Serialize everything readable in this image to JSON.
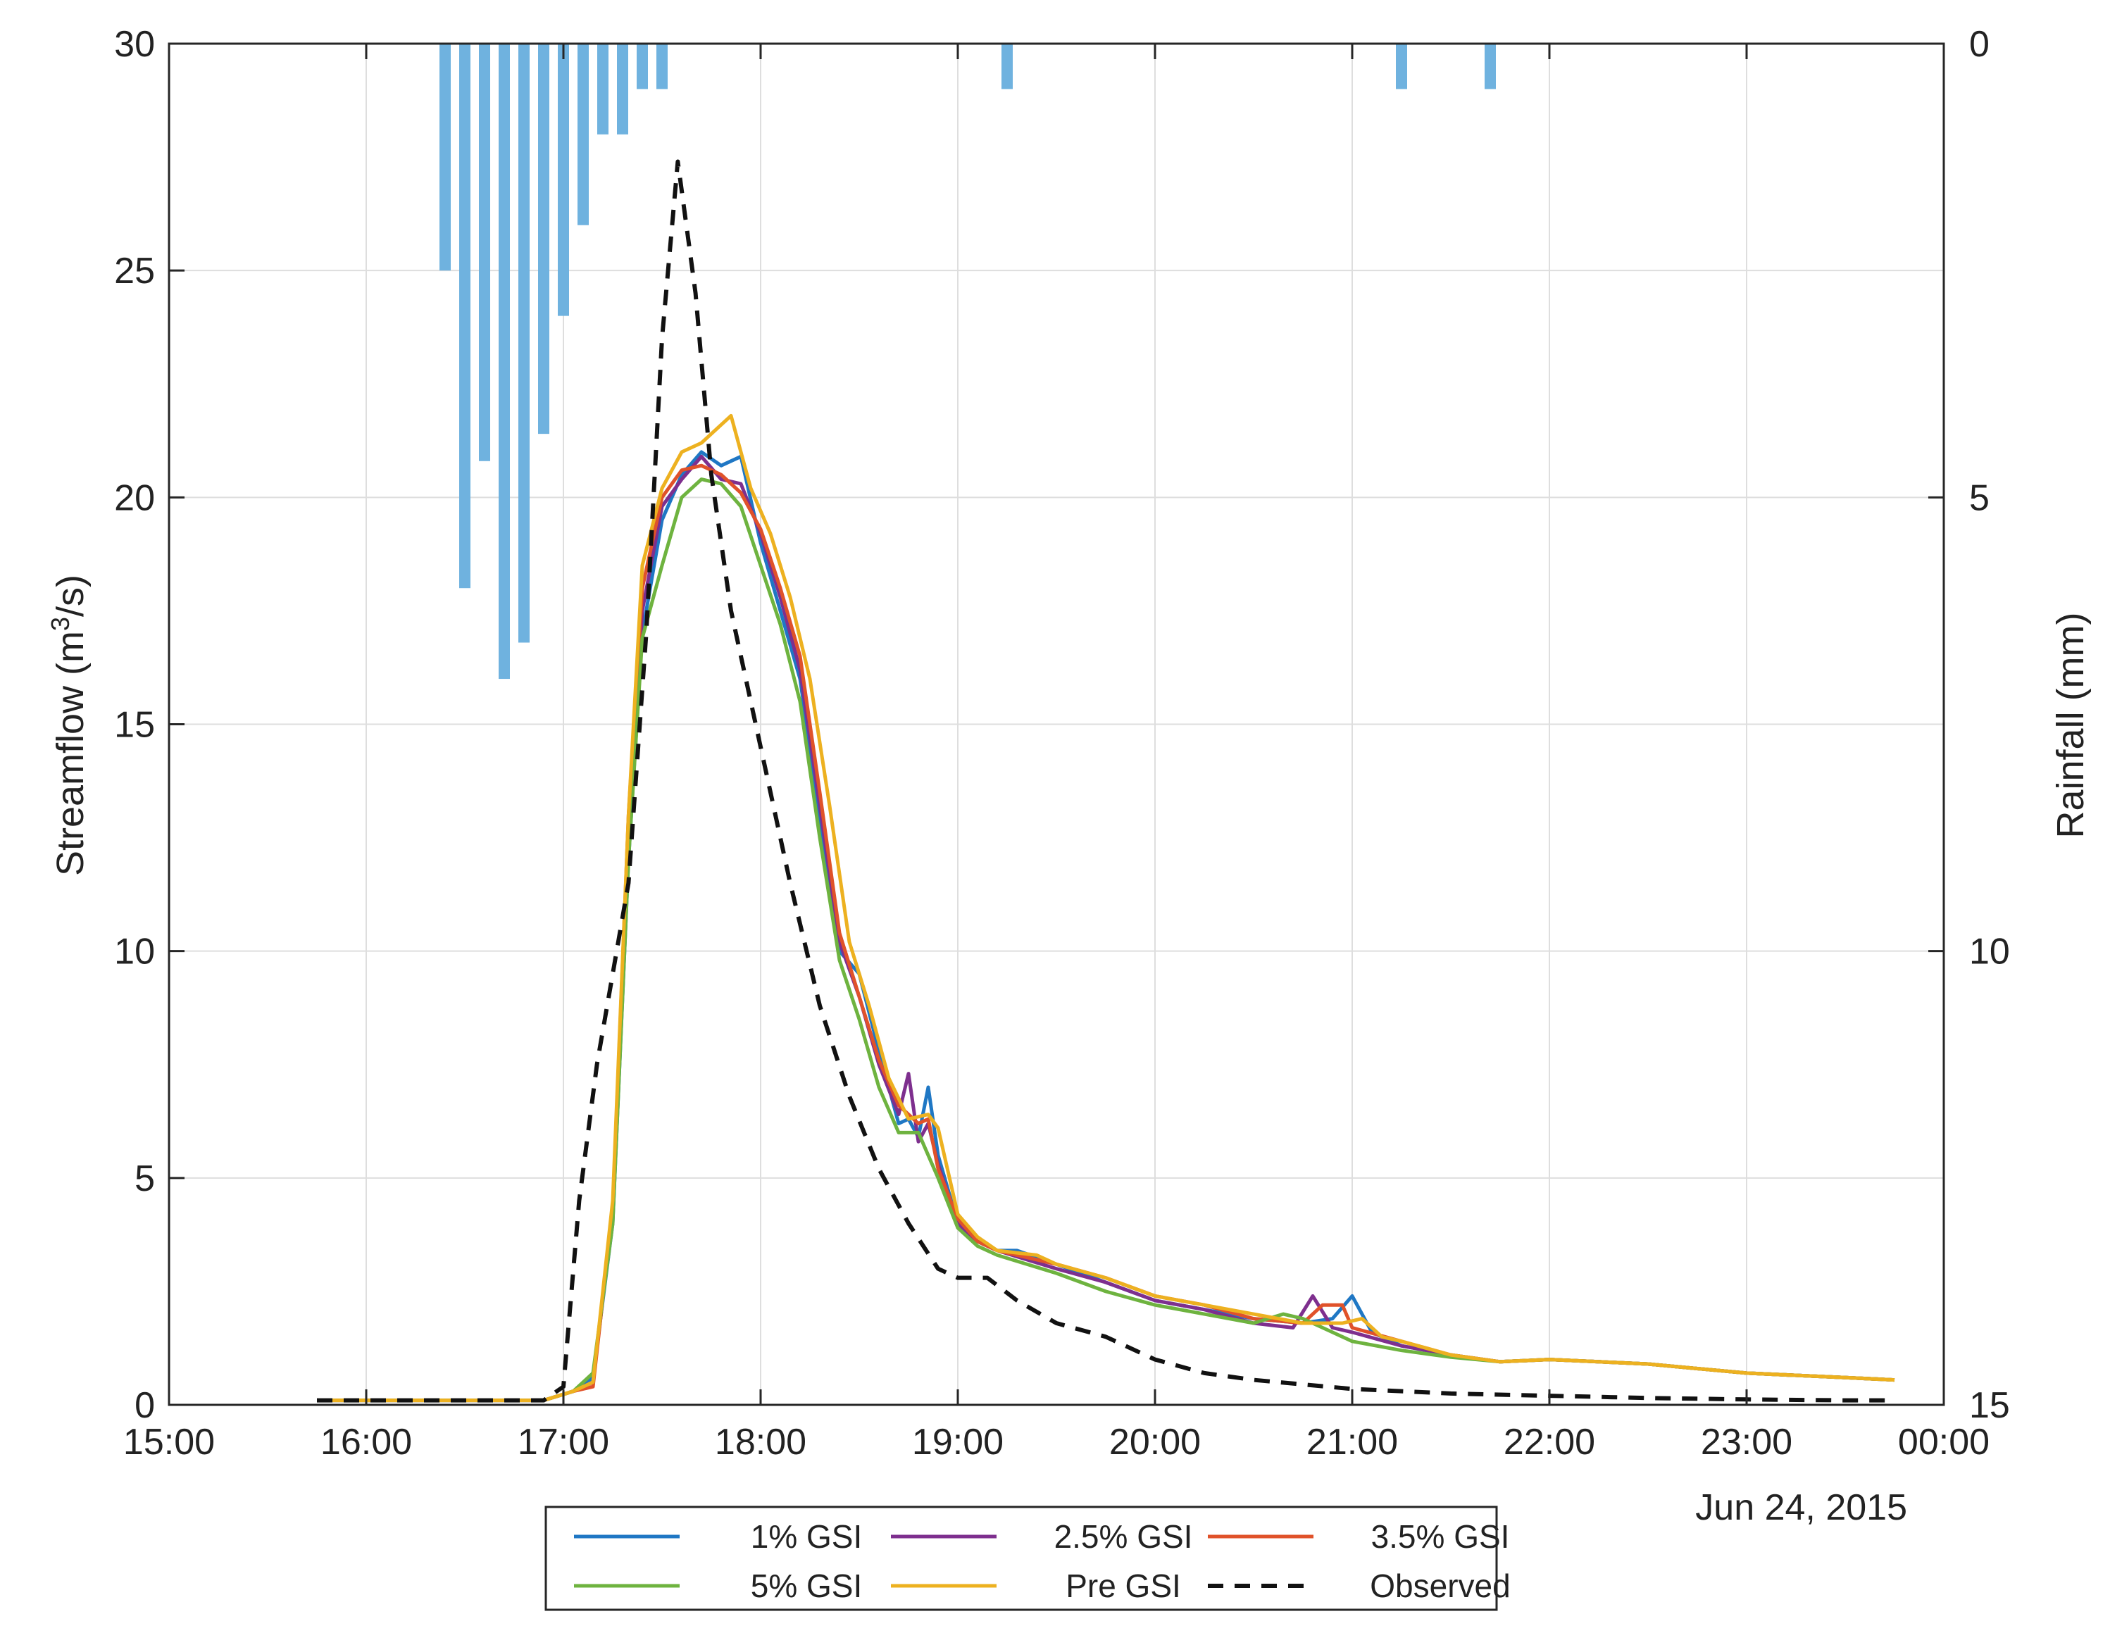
{
  "chart_data": {
    "type": "line",
    "xlabel": "",
    "ylabel": "Streamflow (m",
    "ylabel_sup": "3",
    "ylabel_tail": "/s)",
    "y2label": "Rainfall (mm)",
    "date_label": "Jun 24, 2015",
    "x_ticks": [
      "15:00",
      "16:00",
      "17:00",
      "18:00",
      "19:00",
      "20:00",
      "21:00",
      "22:00",
      "23:00",
      "00:00"
    ],
    "y_ticks": [
      "0",
      "5",
      "10",
      "15",
      "20",
      "25",
      "30"
    ],
    "y2_ticks": [
      "0",
      "5",
      "10",
      "15"
    ],
    "xlim_hours": [
      15,
      24
    ],
    "ylim": [
      0,
      30
    ],
    "y2lim": [
      0,
      15
    ],
    "y2_reversed": true,
    "grid": true,
    "legend_position": "bottom-center",
    "rainfall": {
      "color": "#6fb2df",
      "times": [
        16.4,
        16.5,
        16.6,
        16.7,
        16.8,
        16.9,
        17.0,
        17.1,
        17.2,
        17.3,
        17.4,
        17.5,
        19.25,
        21.25,
        21.7
      ],
      "values": [
        2.5,
        6.0,
        4.6,
        7.0,
        6.6,
        4.3,
        3.0,
        2.0,
        1.0,
        1.0,
        0.5,
        0.5,
        0.5,
        0.5,
        0.5
      ]
    },
    "series": [
      {
        "name": "1% GSI",
        "color": "#1f77c4",
        "dash": "solid",
        "points": [
          [
            15.75,
            0.1
          ],
          [
            16.0,
            0.1
          ],
          [
            16.5,
            0.1
          ],
          [
            16.9,
            0.1
          ],
          [
            17.05,
            0.3
          ],
          [
            17.15,
            0.6
          ],
          [
            17.25,
            4.0
          ],
          [
            17.33,
            12.0
          ],
          [
            17.4,
            17.0
          ],
          [
            17.5,
            19.5
          ],
          [
            17.6,
            20.5
          ],
          [
            17.7,
            21.0
          ],
          [
            17.8,
            20.7
          ],
          [
            17.9,
            20.9
          ],
          [
            18.0,
            19.0
          ],
          [
            18.1,
            17.5
          ],
          [
            18.2,
            16.0
          ],
          [
            18.3,
            13.0
          ],
          [
            18.4,
            10.0
          ],
          [
            18.5,
            9.5
          ],
          [
            18.6,
            7.8
          ],
          [
            18.7,
            6.2
          ],
          [
            18.75,
            6.3
          ],
          [
            18.8,
            5.9
          ],
          [
            18.85,
            7.0
          ],
          [
            18.9,
            5.5
          ],
          [
            19.0,
            4.0
          ],
          [
            19.1,
            3.6
          ],
          [
            19.2,
            3.4
          ],
          [
            19.3,
            3.4
          ],
          [
            19.5,
            3.1
          ],
          [
            19.75,
            2.7
          ],
          [
            20.0,
            2.3
          ],
          [
            20.25,
            2.1
          ],
          [
            20.5,
            1.9
          ],
          [
            20.75,
            1.8
          ],
          [
            20.9,
            1.9
          ],
          [
            21.0,
            2.4
          ],
          [
            21.1,
            1.6
          ],
          [
            21.25,
            1.3
          ],
          [
            21.5,
            1.1
          ],
          [
            21.75,
            0.95
          ],
          [
            22.0,
            1.0
          ],
          [
            22.25,
            0.95
          ],
          [
            22.5,
            0.9
          ],
          [
            22.75,
            0.8
          ],
          [
            23.0,
            0.7
          ],
          [
            23.5,
            0.6
          ],
          [
            23.75,
            0.55
          ]
        ]
      },
      {
        "name": "2.5% GSI",
        "color": "#7e2f8e",
        "dash": "solid",
        "points": [
          [
            15.75,
            0.1
          ],
          [
            16.0,
            0.1
          ],
          [
            16.5,
            0.1
          ],
          [
            16.9,
            0.1
          ],
          [
            17.05,
            0.3
          ],
          [
            17.15,
            0.5
          ],
          [
            17.25,
            4.2
          ],
          [
            17.33,
            12.5
          ],
          [
            17.4,
            17.5
          ],
          [
            17.5,
            19.8
          ],
          [
            17.6,
            20.4
          ],
          [
            17.7,
            20.9
          ],
          [
            17.8,
            20.4
          ],
          [
            17.9,
            20.3
          ],
          [
            18.0,
            19.2
          ],
          [
            18.1,
            17.8
          ],
          [
            18.2,
            16.2
          ],
          [
            18.3,
            13.2
          ],
          [
            18.4,
            10.2
          ],
          [
            18.5,
            9.0
          ],
          [
            18.6,
            7.5
          ],
          [
            18.7,
            6.4
          ],
          [
            18.75,
            7.3
          ],
          [
            18.8,
            5.8
          ],
          [
            18.85,
            6.2
          ],
          [
            18.9,
            5.3
          ],
          [
            19.0,
            4.0
          ],
          [
            19.1,
            3.6
          ],
          [
            19.2,
            3.4
          ],
          [
            19.5,
            3.0
          ],
          [
            19.75,
            2.7
          ],
          [
            20.0,
            2.3
          ],
          [
            20.25,
            2.1
          ],
          [
            20.5,
            1.8
          ],
          [
            20.7,
            1.7
          ],
          [
            20.8,
            2.4
          ],
          [
            20.9,
            1.7
          ],
          [
            21.0,
            1.6
          ],
          [
            21.25,
            1.3
          ],
          [
            21.5,
            1.1
          ],
          [
            21.75,
            0.95
          ],
          [
            22.0,
            1.0
          ],
          [
            22.25,
            0.95
          ],
          [
            22.5,
            0.9
          ],
          [
            22.75,
            0.8
          ],
          [
            23.0,
            0.7
          ],
          [
            23.5,
            0.6
          ],
          [
            23.75,
            0.55
          ]
        ]
      },
      {
        "name": "3.5% GSI",
        "color": "#e0522a",
        "dash": "solid",
        "points": [
          [
            15.75,
            0.1
          ],
          [
            16.0,
            0.1
          ],
          [
            16.5,
            0.1
          ],
          [
            16.9,
            0.1
          ],
          [
            17.05,
            0.3
          ],
          [
            17.15,
            0.4
          ],
          [
            17.25,
            4.3
          ],
          [
            17.33,
            13.0
          ],
          [
            17.4,
            18.0
          ],
          [
            17.5,
            20.0
          ],
          [
            17.6,
            20.6
          ],
          [
            17.7,
            20.7
          ],
          [
            17.8,
            20.5
          ],
          [
            17.9,
            20.1
          ],
          [
            18.0,
            19.3
          ],
          [
            18.1,
            18.0
          ],
          [
            18.2,
            16.5
          ],
          [
            18.3,
            13.5
          ],
          [
            18.4,
            10.4
          ],
          [
            18.5,
            9.0
          ],
          [
            18.6,
            7.6
          ],
          [
            18.7,
            6.6
          ],
          [
            18.8,
            6.2
          ],
          [
            18.85,
            6.3
          ],
          [
            18.9,
            5.2
          ],
          [
            19.0,
            4.1
          ],
          [
            19.1,
            3.6
          ],
          [
            19.2,
            3.4
          ],
          [
            19.5,
            3.1
          ],
          [
            19.75,
            2.8
          ],
          [
            20.0,
            2.4
          ],
          [
            20.25,
            2.2
          ],
          [
            20.5,
            1.9
          ],
          [
            20.75,
            1.8
          ],
          [
            20.85,
            2.2
          ],
          [
            20.95,
            2.2
          ],
          [
            21.0,
            1.7
          ],
          [
            21.25,
            1.4
          ],
          [
            21.5,
            1.1
          ],
          [
            21.75,
            0.95
          ],
          [
            22.0,
            1.0
          ],
          [
            22.25,
            0.95
          ],
          [
            22.5,
            0.9
          ],
          [
            22.75,
            0.8
          ],
          [
            23.0,
            0.7
          ],
          [
            23.5,
            0.6
          ],
          [
            23.75,
            0.55
          ]
        ]
      },
      {
        "name": "5% GSI",
        "color": "#6eb33f",
        "dash": "solid",
        "points": [
          [
            15.75,
            0.1
          ],
          [
            16.0,
            0.1
          ],
          [
            16.5,
            0.1
          ],
          [
            16.9,
            0.1
          ],
          [
            17.05,
            0.3
          ],
          [
            17.15,
            0.7
          ],
          [
            17.25,
            4.0
          ],
          [
            17.33,
            12.0
          ],
          [
            17.4,
            16.9
          ],
          [
            17.5,
            18.5
          ],
          [
            17.6,
            20.0
          ],
          [
            17.7,
            20.4
          ],
          [
            17.8,
            20.3
          ],
          [
            17.9,
            19.8
          ],
          [
            18.0,
            18.5
          ],
          [
            18.1,
            17.2
          ],
          [
            18.2,
            15.5
          ],
          [
            18.3,
            12.5
          ],
          [
            18.4,
            9.8
          ],
          [
            18.5,
            8.5
          ],
          [
            18.6,
            7.0
          ],
          [
            18.7,
            6.0
          ],
          [
            18.8,
            6.0
          ],
          [
            18.9,
            5.0
          ],
          [
            19.0,
            3.9
          ],
          [
            19.1,
            3.5
          ],
          [
            19.2,
            3.3
          ],
          [
            19.5,
            2.9
          ],
          [
            19.75,
            2.5
          ],
          [
            20.0,
            2.2
          ],
          [
            20.25,
            2.0
          ],
          [
            20.5,
            1.8
          ],
          [
            20.65,
            2.0
          ],
          [
            20.75,
            1.9
          ],
          [
            20.9,
            1.6
          ],
          [
            21.0,
            1.4
          ],
          [
            21.25,
            1.2
          ],
          [
            21.5,
            1.05
          ],
          [
            21.75,
            0.95
          ],
          [
            22.0,
            1.0
          ],
          [
            22.25,
            0.95
          ],
          [
            22.5,
            0.9
          ],
          [
            22.75,
            0.8
          ],
          [
            23.0,
            0.7
          ],
          [
            23.5,
            0.6
          ],
          [
            23.75,
            0.55
          ]
        ]
      },
      {
        "name": "Pre GSI",
        "color": "#edb120",
        "dash": "solid",
        "points": [
          [
            15.75,
            0.1
          ],
          [
            16.0,
            0.1
          ],
          [
            16.5,
            0.1
          ],
          [
            16.9,
            0.1
          ],
          [
            17.05,
            0.3
          ],
          [
            17.15,
            0.5
          ],
          [
            17.25,
            4.5
          ],
          [
            17.33,
            13.0
          ],
          [
            17.4,
            18.5
          ],
          [
            17.5,
            20.2
          ],
          [
            17.6,
            21.0
          ],
          [
            17.7,
            21.2
          ],
          [
            17.8,
            21.6
          ],
          [
            17.85,
            21.8
          ],
          [
            17.95,
            20.2
          ],
          [
            18.05,
            19.2
          ],
          [
            18.15,
            17.8
          ],
          [
            18.25,
            16.0
          ],
          [
            18.35,
            13.2
          ],
          [
            18.45,
            10.2
          ],
          [
            18.55,
            8.8
          ],
          [
            18.65,
            7.2
          ],
          [
            18.75,
            6.3
          ],
          [
            18.85,
            6.4
          ],
          [
            18.9,
            6.1
          ],
          [
            19.0,
            4.2
          ],
          [
            19.1,
            3.7
          ],
          [
            19.2,
            3.4
          ],
          [
            19.4,
            3.3
          ],
          [
            19.5,
            3.1
          ],
          [
            19.75,
            2.8
          ],
          [
            20.0,
            2.4
          ],
          [
            20.25,
            2.2
          ],
          [
            20.5,
            2.0
          ],
          [
            20.75,
            1.8
          ],
          [
            20.95,
            1.8
          ],
          [
            21.05,
            1.9
          ],
          [
            21.15,
            1.5
          ],
          [
            21.25,
            1.4
          ],
          [
            21.5,
            1.1
          ],
          [
            21.75,
            0.95
          ],
          [
            22.0,
            1.0
          ],
          [
            22.25,
            0.95
          ],
          [
            22.5,
            0.9
          ],
          [
            22.75,
            0.8
          ],
          [
            23.0,
            0.7
          ],
          [
            23.5,
            0.6
          ],
          [
            23.75,
            0.55
          ]
        ]
      },
      {
        "name": "Observed",
        "color": "#111111",
        "dash": "dashed",
        "points": [
          [
            15.75,
            0.1
          ],
          [
            16.0,
            0.1
          ],
          [
            16.5,
            0.1
          ],
          [
            16.9,
            0.1
          ],
          [
            17.0,
            0.4
          ],
          [
            17.08,
            4.5
          ],
          [
            17.17,
            7.5
          ],
          [
            17.25,
            9.5
          ],
          [
            17.33,
            11.5
          ],
          [
            17.42,
            17.0
          ],
          [
            17.5,
            23.5
          ],
          [
            17.58,
            27.4
          ],
          [
            17.67,
            24.5
          ],
          [
            17.75,
            20.5
          ],
          [
            17.85,
            17.5
          ],
          [
            18.0,
            14.5
          ],
          [
            18.15,
            11.5
          ],
          [
            18.3,
            8.8
          ],
          [
            18.45,
            6.8
          ],
          [
            18.6,
            5.2
          ],
          [
            18.75,
            4.0
          ],
          [
            18.9,
            3.0
          ],
          [
            19.0,
            2.8
          ],
          [
            19.15,
            2.8
          ],
          [
            19.3,
            2.3
          ],
          [
            19.5,
            1.8
          ],
          [
            19.75,
            1.5
          ],
          [
            20.0,
            1.0
          ],
          [
            20.25,
            0.7
          ],
          [
            20.5,
            0.55
          ],
          [
            21.0,
            0.35
          ],
          [
            21.5,
            0.25
          ],
          [
            22.0,
            0.2
          ],
          [
            22.5,
            0.15
          ],
          [
            23.0,
            0.12
          ],
          [
            23.5,
            0.1
          ],
          [
            23.75,
            0.1
          ]
        ]
      }
    ]
  }
}
